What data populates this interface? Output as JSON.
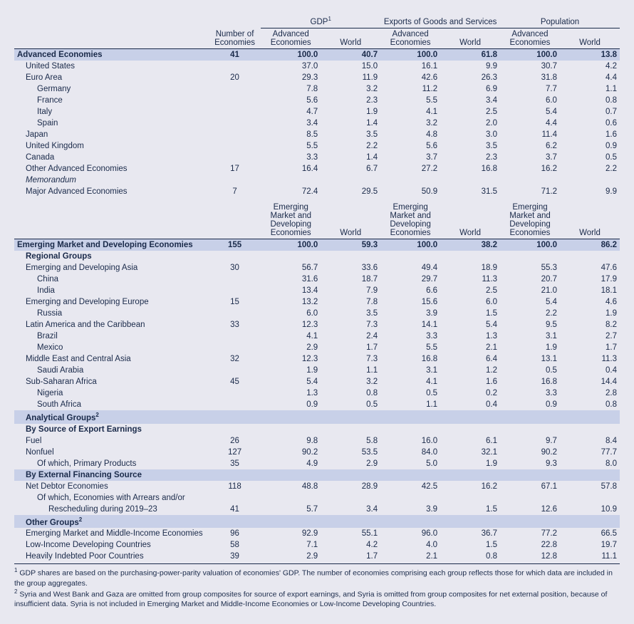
{
  "colors": {
    "background": "#e8e8f0",
    "highlight": "#c8d0e8",
    "text": "#1a2a4a",
    "border": "#1a2a4a"
  },
  "typography": {
    "font_family": "Arial, Helvetica, sans-serif",
    "font_size_body": 11.5,
    "font_size_footnote": 10.5
  },
  "headers": {
    "number": "Number of Economies",
    "gdp": "GDP",
    "gdp_sup": "1",
    "exports": "Exports of Goods and Services",
    "population": "Population",
    "adv": "Advanced Economies",
    "world": "World",
    "emde": "Emerging Market and Developing Economies"
  },
  "rows_adv": [
    {
      "label": "Advanced Economies",
      "n": "41",
      "a": "100.0",
      "b": "40.7",
      "c": "100.0",
      "d": "61.8",
      "e": "100.0",
      "f": "13.8",
      "bold": true,
      "hl": true,
      "indent": 0
    },
    {
      "label": "United States",
      "a": "37.0",
      "b": "15.0",
      "c": "16.1",
      "d": "9.9",
      "e": "30.7",
      "f": "4.2",
      "indent": 1
    },
    {
      "label": "Euro Area",
      "n": "20",
      "a": "29.3",
      "b": "11.9",
      "c": "42.6",
      "d": "26.3",
      "e": "31.8",
      "f": "4.4",
      "indent": 1
    },
    {
      "label": "Germany",
      "a": "7.8",
      "b": "3.2",
      "c": "11.2",
      "d": "6.9",
      "e": "7.7",
      "f": "1.1",
      "indent": 2
    },
    {
      "label": "France",
      "a": "5.6",
      "b": "2.3",
      "c": "5.5",
      "d": "3.4",
      "e": "6.0",
      "f": "0.8",
      "indent": 2
    },
    {
      "label": "Italy",
      "a": "4.7",
      "b": "1.9",
      "c": "4.1",
      "d": "2.5",
      "e": "5.4",
      "f": "0.7",
      "indent": 2
    },
    {
      "label": "Spain",
      "a": "3.4",
      "b": "1.4",
      "c": "3.2",
      "d": "2.0",
      "e": "4.4",
      "f": "0.6",
      "indent": 2
    },
    {
      "label": "Japan",
      "a": "8.5",
      "b": "3.5",
      "c": "4.8",
      "d": "3.0",
      "e": "11.4",
      "f": "1.6",
      "indent": 1
    },
    {
      "label": "United Kingdom",
      "a": "5.5",
      "b": "2.2",
      "c": "5.6",
      "d": "3.5",
      "e": "6.2",
      "f": "0.9",
      "indent": 1
    },
    {
      "label": "Canada",
      "a": "3.3",
      "b": "1.4",
      "c": "3.7",
      "d": "2.3",
      "e": "3.7",
      "f": "0.5",
      "indent": 1
    },
    {
      "label": "Other Advanced Economies",
      "n": "17",
      "a": "16.4",
      "b": "6.7",
      "c": "27.2",
      "d": "16.8",
      "e": "16.2",
      "f": "2.2",
      "indent": 1
    },
    {
      "label": "Memorandum",
      "indent": 1,
      "italic": true
    },
    {
      "label": "Major Advanced Economies",
      "n": "7",
      "a": "72.4",
      "b": "29.5",
      "c": "50.9",
      "d": "31.5",
      "e": "71.2",
      "f": "9.9",
      "indent": 1
    }
  ],
  "rows_emde": [
    {
      "label": "Emerging Market and Developing Economies",
      "n": "155",
      "a": "100.0",
      "b": "59.3",
      "c": "100.0",
      "d": "38.2",
      "e": "100.0",
      "f": "86.2",
      "bold": true,
      "hl": true,
      "indent": 0
    },
    {
      "label": "Regional Groups",
      "bold": true,
      "indent": 1
    },
    {
      "label": "Emerging and Developing Asia",
      "n": "30",
      "a": "56.7",
      "b": "33.6",
      "c": "49.4",
      "d": "18.9",
      "e": "55.3",
      "f": "47.6",
      "indent": 1
    },
    {
      "label": "China",
      "a": "31.6",
      "b": "18.7",
      "c": "29.7",
      "d": "11.3",
      "e": "20.7",
      "f": "17.9",
      "indent": 2
    },
    {
      "label": "India",
      "a": "13.4",
      "b": "7.9",
      "c": "6.6",
      "d": "2.5",
      "e": "21.0",
      "f": "18.1",
      "indent": 2
    },
    {
      "label": "Emerging and Developing Europe",
      "n": "15",
      "a": "13.2",
      "b": "7.8",
      "c": "15.6",
      "d": "6.0",
      "e": "5.4",
      "f": "4.6",
      "indent": 1
    },
    {
      "label": "Russia",
      "a": "6.0",
      "b": "3.5",
      "c": "3.9",
      "d": "1.5",
      "e": "2.2",
      "f": "1.9",
      "indent": 2
    },
    {
      "label": "Latin America and the Caribbean",
      "n": "33",
      "a": "12.3",
      "b": "7.3",
      "c": "14.1",
      "d": "5.4",
      "e": "9.5",
      "f": "8.2",
      "indent": 1
    },
    {
      "label": "Brazil",
      "a": "4.1",
      "b": "2.4",
      "c": "3.3",
      "d": "1.3",
      "e": "3.1",
      "f": "2.7",
      "indent": 2
    },
    {
      "label": "Mexico",
      "a": "2.9",
      "b": "1.7",
      "c": "5.5",
      "d": "2.1",
      "e": "1.9",
      "f": "1.7",
      "indent": 2
    },
    {
      "label": "Middle East and Central Asia",
      "n": "32",
      "a": "12.3",
      "b": "7.3",
      "c": "16.8",
      "d": "6.4",
      "e": "13.1",
      "f": "11.3",
      "indent": 1
    },
    {
      "label": "Saudi Arabia",
      "a": "1.9",
      "b": "1.1",
      "c": "3.1",
      "d": "1.2",
      "e": "0.5",
      "f": "0.4",
      "indent": 2
    },
    {
      "label": "Sub-Saharan Africa",
      "n": "45",
      "a": "5.4",
      "b": "3.2",
      "c": "4.1",
      "d": "1.6",
      "e": "16.8",
      "f": "14.4",
      "indent": 1
    },
    {
      "label": "Nigeria",
      "a": "1.3",
      "b": "0.8",
      "c": "0.5",
      "d": "0.2",
      "e": "3.3",
      "f": "2.8",
      "indent": 2
    },
    {
      "label": "South Africa",
      "a": "0.9",
      "b": "0.5",
      "c": "1.1",
      "d": "0.4",
      "e": "0.9",
      "f": "0.8",
      "indent": 2
    },
    {
      "label": "Analytical Groups",
      "sup": "2",
      "bold": true,
      "indent": 1,
      "hl": true
    },
    {
      "label": "By Source of Export Earnings",
      "bold": true,
      "indent": 1
    },
    {
      "label": "Fuel",
      "n": "26",
      "a": "9.8",
      "b": "5.8",
      "c": "16.0",
      "d": "6.1",
      "e": "9.7",
      "f": "8.4",
      "indent": 1
    },
    {
      "label": "Nonfuel",
      "n": "127",
      "a": "90.2",
      "b": "53.5",
      "c": "84.0",
      "d": "32.1",
      "e": "90.2",
      "f": "77.7",
      "indent": 1
    },
    {
      "label": "Of which, Primary Products",
      "n": "35",
      "a": "4.9",
      "b": "2.9",
      "c": "5.0",
      "d": "1.9",
      "e": "9.3",
      "f": "8.0",
      "indent": 2
    },
    {
      "label": "By External Financing Source",
      "bold": true,
      "indent": 1,
      "hl": true
    },
    {
      "label": "Net Debtor Economies",
      "n": "118",
      "a": "48.8",
      "b": "28.9",
      "c": "42.5",
      "d": "16.2",
      "e": "67.1",
      "f": "57.8",
      "indent": 1
    },
    {
      "label": "Of which, Economies with Arrears and/or",
      "indent": 2
    },
    {
      "label": "Rescheduling during 2019–23",
      "n": "41",
      "a": "5.7",
      "b": "3.4",
      "c": "3.9",
      "d": "1.5",
      "e": "12.6",
      "f": "10.9",
      "indent": 3
    },
    {
      "label": "Other Groups",
      "sup": "2",
      "bold": true,
      "indent": 1,
      "hl": true
    },
    {
      "label": "Emerging Market and Middle-Income Economies",
      "n": "96",
      "a": "92.9",
      "b": "55.1",
      "c": "96.0",
      "d": "36.7",
      "e": "77.2",
      "f": "66.5",
      "indent": 1
    },
    {
      "label": "Low-Income Developing Countries",
      "n": "58",
      "a": "7.1",
      "b": "4.2",
      "c": "4.0",
      "d": "1.5",
      "e": "22.8",
      "f": "19.7",
      "indent": 1
    },
    {
      "label": "Heavily Indebted Poor Countries",
      "n": "39",
      "a": "2.9",
      "b": "1.7",
      "c": "2.1",
      "d": "0.8",
      "e": "12.8",
      "f": "11.1",
      "indent": 1
    }
  ],
  "footnotes": {
    "f1_sup": "1",
    "f1": "GDP shares are based on the purchasing-power-parity valuation of economies' GDP. The number of economies comprising each group reflects those for which data are included in the group aggregates.",
    "f2_sup": "2",
    "f2": "Syria and West Bank and Gaza are omitted from group composites for source of export earnings, and Syria is omitted from group composites for net external position, because of insufficient data. Syria is not included in Emerging Market and Middle-Income Economies or Low-Income Developing Countries."
  }
}
